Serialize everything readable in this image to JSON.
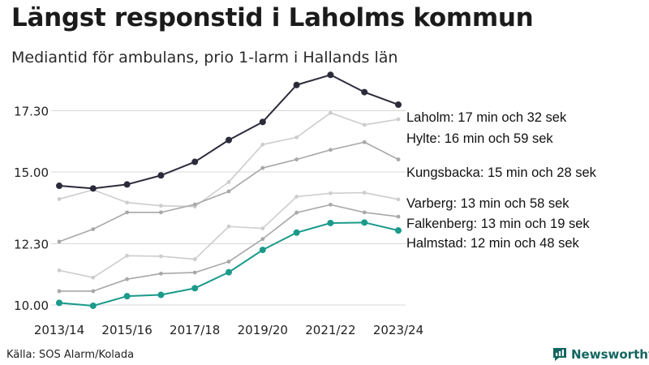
{
  "header": {
    "title": "Längst responstid i Laholms kommun",
    "subtitle": "Mediantid för ambulans, prio 1-larm i Hallands län"
  },
  "footer": {
    "source": "Källa: SOS Alarm/Kolada",
    "brand": "Newsworthy"
  },
  "colors": {
    "highlight_dark": "#2b2b3a",
    "highlight_teal": "#1a9a8a",
    "mid_gray": "#a8a8a8",
    "light_gray": "#cdcdcd",
    "grid": "#d9d9d9",
    "brand": "#14665f"
  },
  "chart_data": {
    "type": "line",
    "x": [
      "2013/14",
      "2014/15",
      "2015/16",
      "2016/17",
      "2017/18",
      "2018/19",
      "2019/20",
      "2020/21",
      "2021/22",
      "2022/23",
      "2023/24"
    ],
    "x_tick_labels": [
      "2013/14",
      "2015/16",
      "2017/18",
      "2019/20",
      "2021/22",
      "2023/24"
    ],
    "y_ticks": [
      10.0,
      12.3,
      15.0,
      17.3
    ],
    "y_tick_labels": [
      "10.00",
      "12.30",
      "15.00",
      "17.30"
    ],
    "ylim": [
      9.7,
      19.2
    ],
    "grid": "horizontal",
    "series": [
      {
        "name": "Laholm",
        "label": "Laholm: 17 min och 32 sek",
        "style": "highlight_dark",
        "values": [
          14.48,
          14.38,
          14.53,
          14.87,
          15.38,
          16.2,
          16.88,
          18.27,
          18.65,
          18.0,
          17.53
        ]
      },
      {
        "name": "Hylte",
        "label": "Hylte: 16 min och 59 sek",
        "style": "light_gray",
        "values": [
          13.98,
          14.33,
          13.85,
          13.73,
          13.7,
          14.62,
          16.03,
          16.3,
          17.22,
          16.77,
          16.98
        ]
      },
      {
        "name": "Kungsbacka",
        "label": "Kungsbacka: 15 min och 28 sek",
        "style": "mid_gray",
        "values": [
          12.38,
          12.85,
          13.48,
          13.48,
          13.78,
          14.27,
          15.15,
          15.47,
          15.83,
          16.12,
          15.47
        ]
      },
      {
        "name": "Varberg",
        "label": "Varberg: 13 min och 58 sek",
        "style": "light_gray",
        "values": [
          11.3,
          11.03,
          11.85,
          11.83,
          11.72,
          12.95,
          12.88,
          14.07,
          14.2,
          14.22,
          13.97
        ]
      },
      {
        "name": "Falkenberg",
        "label": "Falkenberg: 13 min och 19 sek",
        "style": "mid_gray",
        "values": [
          10.52,
          10.52,
          10.97,
          11.18,
          11.22,
          11.63,
          12.48,
          13.47,
          13.77,
          13.48,
          13.32
        ]
      },
      {
        "name": "Halmstad",
        "label": "Halmstad: 12 min och 48 sek",
        "style": "highlight_teal",
        "values": [
          10.08,
          9.97,
          10.33,
          10.38,
          10.63,
          11.23,
          12.07,
          12.72,
          13.08,
          13.1,
          12.8
        ]
      }
    ]
  }
}
